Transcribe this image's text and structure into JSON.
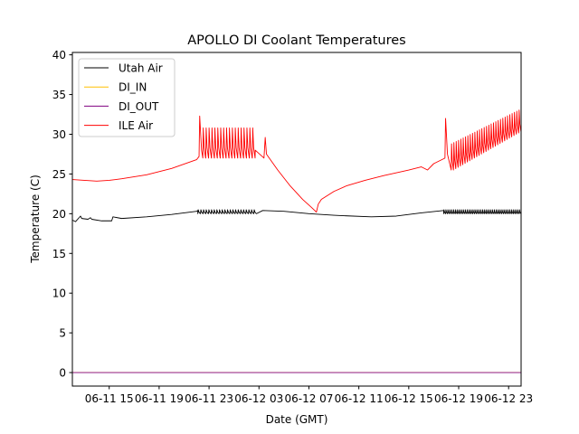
{
  "chart_data": {
    "type": "line",
    "title": "APOLLO DI Coolant Temperatures",
    "xlabel": "Date (GMT)",
    "ylabel": "Temperature (C)",
    "x_unit": "hours since 06-11 12:00 GMT",
    "xlim": [
      0.05,
      36.0
    ],
    "ylim": [
      -1.7,
      40.3
    ],
    "yticks": [
      0,
      5,
      10,
      15,
      20,
      25,
      30,
      35,
      40
    ],
    "xticks": [
      {
        "label": "06-11 15",
        "x": 3
      },
      {
        "label": "06-11 19",
        "x": 7
      },
      {
        "label": "06-11 23",
        "x": 11
      },
      {
        "label": "06-12 03",
        "x": 15
      },
      {
        "label": "06-12 07",
        "x": 19
      },
      {
        "label": "06-12 11",
        "x": 23
      },
      {
        "label": "06-12 15",
        "x": 27
      },
      {
        "label": "06-12 19",
        "x": 31
      },
      {
        "label": "06-12 23",
        "x": 35
      }
    ],
    "grid": false,
    "legend": {
      "placement": "top-left"
    },
    "series": [
      {
        "name": "Utah Air",
        "color": "#000000",
        "points": [
          [
            0.05,
            19.2
          ],
          [
            0.3,
            19.0
          ],
          [
            0.7,
            19.7
          ],
          [
            0.8,
            19.4
          ],
          [
            1.3,
            19.3
          ],
          [
            1.5,
            19.5
          ],
          [
            1.6,
            19.3
          ],
          [
            2.4,
            19.1
          ],
          [
            3.2,
            19.1
          ],
          [
            3.3,
            19.6
          ],
          [
            4.0,
            19.4
          ],
          [
            6.0,
            19.6
          ],
          [
            8.0,
            19.9
          ],
          [
            10.0,
            20.3
          ],
          [
            10.1,
            20.4
          ],
          [
            15.3,
            20.4
          ],
          [
            17.0,
            20.3
          ],
          [
            19.0,
            20.0
          ],
          [
            21.0,
            19.8
          ],
          [
            24.0,
            19.6
          ],
          [
            26.0,
            19.7
          ],
          [
            28.0,
            20.1
          ],
          [
            29.8,
            20.4
          ],
          [
            36.0,
            20.3
          ]
        ],
        "oscillations": [
          {
            "start": 10.1,
            "end": 14.8,
            "count": 22,
            "low": 20.0,
            "high": 20.5
          },
          {
            "start": 29.8,
            "end": 36.0,
            "count": 40,
            "low": 20.0,
            "high": 20.5
          }
        ]
      },
      {
        "name": "DI_IN",
        "color": "#ffbf00",
        "points": [
          [
            0.05,
            0.0
          ],
          [
            36.0,
            0.0
          ]
        ]
      },
      {
        "name": "DI_OUT",
        "color": "#800080",
        "points": [
          [
            0.05,
            0.0
          ],
          [
            36.0,
            0.0
          ]
        ]
      },
      {
        "name": "ILE Air",
        "color": "#ff0000",
        "points": [
          [
            0.05,
            24.3
          ],
          [
            1.0,
            24.2
          ],
          [
            2.0,
            24.1
          ],
          [
            3.0,
            24.2
          ],
          [
            4.0,
            24.4
          ],
          [
            6.0,
            24.9
          ],
          [
            8.0,
            25.7
          ],
          [
            10.0,
            26.8
          ],
          [
            10.2,
            27.2
          ],
          [
            10.25,
            32.3
          ],
          [
            10.4,
            28.0
          ],
          [
            10.5,
            27.0
          ],
          [
            12.0,
            28.2
          ],
          [
            13.5,
            28.8
          ],
          [
            14.7,
            28.0
          ],
          [
            15.4,
            27.0
          ],
          [
            15.5,
            29.6
          ],
          [
            15.6,
            27.5
          ],
          [
            16.5,
            25.5
          ],
          [
            17.5,
            23.5
          ],
          [
            18.5,
            21.8
          ],
          [
            19.2,
            20.8
          ],
          [
            19.6,
            20.2
          ],
          [
            19.75,
            21.2
          ],
          [
            20.0,
            21.8
          ],
          [
            21.0,
            22.8
          ],
          [
            22.0,
            23.5
          ],
          [
            23.5,
            24.2
          ],
          [
            25.0,
            24.8
          ],
          [
            27.0,
            25.5
          ],
          [
            28.0,
            25.9
          ],
          [
            28.5,
            25.5
          ],
          [
            29.0,
            26.3
          ],
          [
            29.9,
            27.0
          ],
          [
            29.95,
            32.0
          ],
          [
            30.1,
            27.5
          ],
          [
            30.4,
            25.5
          ],
          [
            36.0,
            30.5
          ]
        ],
        "oscillations": [
          {
            "start": 10.5,
            "end": 14.7,
            "count": 18,
            "low": 27.0,
            "high": 30.8
          },
          {
            "start": 30.4,
            "end": 36.0,
            "count": 30,
            "low": 25.5,
            "high": 33.2,
            "ramp_high_from": 28.8
          }
        ]
      }
    ]
  }
}
